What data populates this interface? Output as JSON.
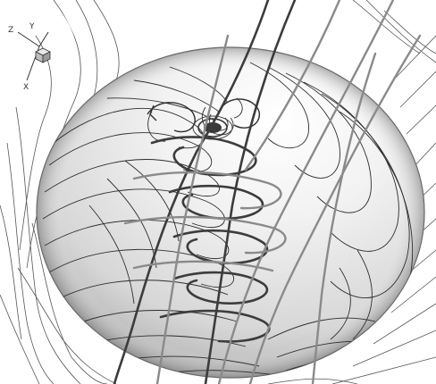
{
  "triad": {
    "z": "Z",
    "y": "Y",
    "x": "X"
  },
  "colors": {
    "background": "#ffffff",
    "sphere_light": "#fdfdfd",
    "sphere_mid": "#e6e6e6",
    "sphere_dark": "#a9a9a9",
    "surface_streamline": "#2e2e2e",
    "vortex_dark": "#3c3c3c",
    "vortex_light": "#8a8a8a",
    "wall_lines": "#555555"
  },
  "icons": [
    "coordinate-triad-icon",
    "cube-icon"
  ]
}
